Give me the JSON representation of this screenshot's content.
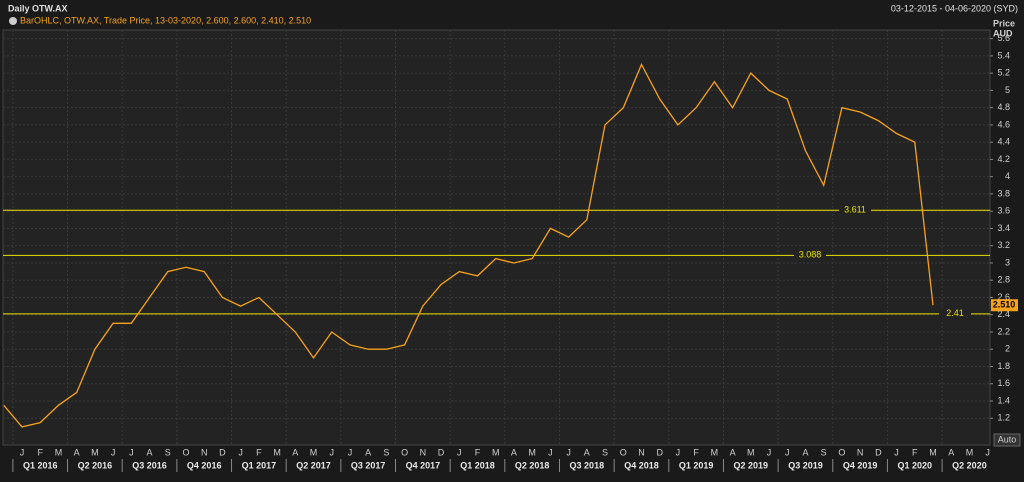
{
  "chart_data": {
    "type": "line",
    "title": "Daily OTW.AX",
    "date_range": "03-12-2015 - 04-06-2020 (SYD)",
    "y_label": "Price",
    "y_unit": "AUD",
    "button": "Auto",
    "categories": [
      null,
      "J",
      "F",
      "M",
      "A",
      "M",
      "J",
      "J",
      "A",
      "S",
      "O",
      "N",
      "D",
      "J",
      "F",
      "M",
      "A",
      "M",
      "J",
      "J",
      "A",
      "S",
      "O",
      "N",
      "D",
      "J",
      "F",
      "M",
      "A",
      "M",
      "J",
      "J",
      "A",
      "S",
      "O",
      "N",
      "D",
      "J",
      "F",
      "M",
      "A",
      "M",
      "J",
      "J",
      "A",
      "S",
      "O",
      "N",
      "D",
      "J",
      "F",
      "M",
      "A",
      "M",
      "J"
    ],
    "quarters": [
      "Q1 2016",
      "Q2 2016",
      "Q3 2016",
      "Q4 2016",
      "Q1 2017",
      "Q2 2017",
      "Q3 2017",
      "Q4 2017",
      "Q1 2018",
      "Q2 2018",
      "Q3 2018",
      "Q4 2018",
      "Q1 2019",
      "Q2 2019",
      "Q3 2019",
      "Q4 2019",
      "Q1 2020",
      "Q2 2020"
    ],
    "series": [
      {
        "name": "BarOHLC, OTW.AX, Trade Price, 13-03-2020, 2.600, 2.600, 2.410, 2.510",
        "color": "#f7a21b",
        "values": [
          1.35,
          1.1,
          1.15,
          1.35,
          1.5,
          2.0,
          2.3,
          2.3,
          2.6,
          2.9,
          2.95,
          2.9,
          2.6,
          2.5,
          2.6,
          2.4,
          2.2,
          1.9,
          2.2,
          2.05,
          2.0,
          2.0,
          2.05,
          2.5,
          2.75,
          2.9,
          2.85,
          3.05,
          3.0,
          3.05,
          3.4,
          3.3,
          3.5,
          4.6,
          4.8,
          5.3,
          4.9,
          4.6,
          4.8,
          5.1,
          4.8,
          5.2,
          5.0,
          4.9,
          4.3,
          3.9,
          4.8,
          4.75,
          4.65,
          4.5,
          4.4,
          2.51,
          null,
          null,
          null
        ]
      }
    ],
    "last_price": {
      "value": 2.51,
      "label": "2.510"
    },
    "hlines": [
      3.611,
      3.088,
      2.41
    ],
    "hline_color": "#e8e000",
    "ylim": [
      0.89,
      5.7
    ],
    "yticks": [
      1.2,
      1.4,
      1.6,
      1.8,
      2,
      2.2,
      2.4,
      2.6,
      2.8,
      3,
      3.2,
      3.4,
      3.6,
      3.8,
      4,
      4.2,
      4.4,
      4.6,
      4.8,
      5,
      5.2,
      5.4,
      5.6
    ],
    "grid": true
  }
}
